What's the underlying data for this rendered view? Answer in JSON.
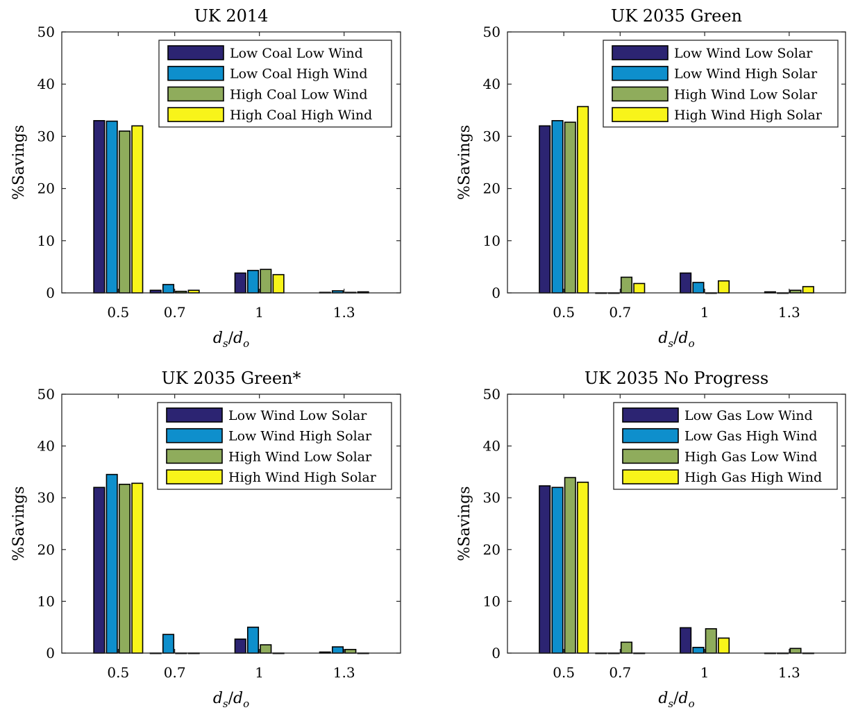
{
  "figure": {
    "ylabel_text": "%Savings"
  },
  "chart_data": [
    {
      "type": "bar",
      "title": "UK 2014",
      "categories": [
        "0.5",
        "0.7",
        "1",
        "1.3"
      ],
      "xlabel": "ds/do",
      "ylabel": "%Savings",
      "ylim": [
        0,
        50
      ],
      "yticks": [
        0,
        10,
        20,
        30,
        40,
        50
      ],
      "legend_position": "top-right",
      "series": [
        {
          "name": "Low Coal Low Wind",
          "color": "#2c2472",
          "values": [
            33.0,
            0.5,
            3.8,
            0.1
          ]
        },
        {
          "name": "Low Coal High Wind",
          "color": "#0e8fcc",
          "values": [
            32.9,
            1.6,
            4.3,
            0.4
          ]
        },
        {
          "name": "High Coal Low Wind",
          "color": "#8fac5c",
          "values": [
            31.0,
            0.3,
            4.5,
            0.1
          ]
        },
        {
          "name": "High Coal High Wind",
          "color": "#f8f41a",
          "values": [
            32.0,
            0.5,
            3.5,
            0.2
          ]
        }
      ]
    },
    {
      "type": "bar",
      "title": "UK 2035 Green",
      "categories": [
        "0.5",
        "0.7",
        "1",
        "1.3"
      ],
      "xlabel": "ds/do",
      "ylabel": "%Savings",
      "ylim": [
        0,
        50
      ],
      "yticks": [
        0,
        10,
        20,
        30,
        40,
        50
      ],
      "legend_position": "top-right",
      "series": [
        {
          "name": "Low Wind Low Solar",
          "color": "#2c2472",
          "values": [
            32.0,
            0.0,
            3.8,
            0.2
          ]
        },
        {
          "name": "Low Wind High Solar",
          "color": "#0e8fcc",
          "values": [
            33.0,
            0.0,
            2.0,
            0.0
          ]
        },
        {
          "name": "High Wind Low Solar",
          "color": "#8fac5c",
          "values": [
            32.7,
            3.0,
            0.0,
            0.5
          ]
        },
        {
          "name": "High Wind High Solar",
          "color": "#f8f41a",
          "values": [
            35.7,
            1.8,
            2.3,
            1.2
          ]
        }
      ]
    },
    {
      "type": "bar",
      "title": "UK 2035 Green*",
      "categories": [
        "0.5",
        "0.7",
        "1",
        "1.3"
      ],
      "xlabel": "ds/do",
      "ylabel": "%Savings",
      "ylim": [
        0,
        50
      ],
      "yticks": [
        0,
        10,
        20,
        30,
        40,
        50
      ],
      "legend_position": "top-right",
      "series": [
        {
          "name": "Low Wind Low Solar",
          "color": "#2c2472",
          "values": [
            32.0,
            0.0,
            2.7,
            0.2
          ]
        },
        {
          "name": "Low Wind High Solar",
          "color": "#0e8fcc",
          "values": [
            34.5,
            3.6,
            5.0,
            1.2
          ]
        },
        {
          "name": "High Wind Low Solar",
          "color": "#8fac5c",
          "values": [
            32.6,
            0.0,
            1.6,
            0.7
          ]
        },
        {
          "name": "High Wind High Solar",
          "color": "#f8f41a",
          "values": [
            32.8,
            0.0,
            0.0,
            0.0
          ]
        }
      ]
    },
    {
      "type": "bar",
      "title": "UK 2035 No Progress",
      "categories": [
        "0.5",
        "0.7",
        "1",
        "1.3"
      ],
      "xlabel": "ds/do",
      "ylabel": "%Savings",
      "ylim": [
        0,
        50
      ],
      "yticks": [
        0,
        10,
        20,
        30,
        40,
        50
      ],
      "legend_position": "top-right",
      "series": [
        {
          "name": "Low Gas Low Wind",
          "color": "#2c2472",
          "values": [
            32.3,
            0.0,
            4.9,
            0.0
          ]
        },
        {
          "name": "Low Gas High Wind",
          "color": "#0e8fcc",
          "values": [
            32.0,
            0.0,
            1.1,
            0.0
          ]
        },
        {
          "name": "High Gas Low Wind",
          "color": "#8fac5c",
          "values": [
            33.9,
            2.1,
            4.7,
            0.9
          ]
        },
        {
          "name": "High Gas High Wind",
          "color": "#f8f41a",
          "values": [
            33.0,
            0.0,
            2.9,
            0.0
          ]
        }
      ]
    }
  ]
}
